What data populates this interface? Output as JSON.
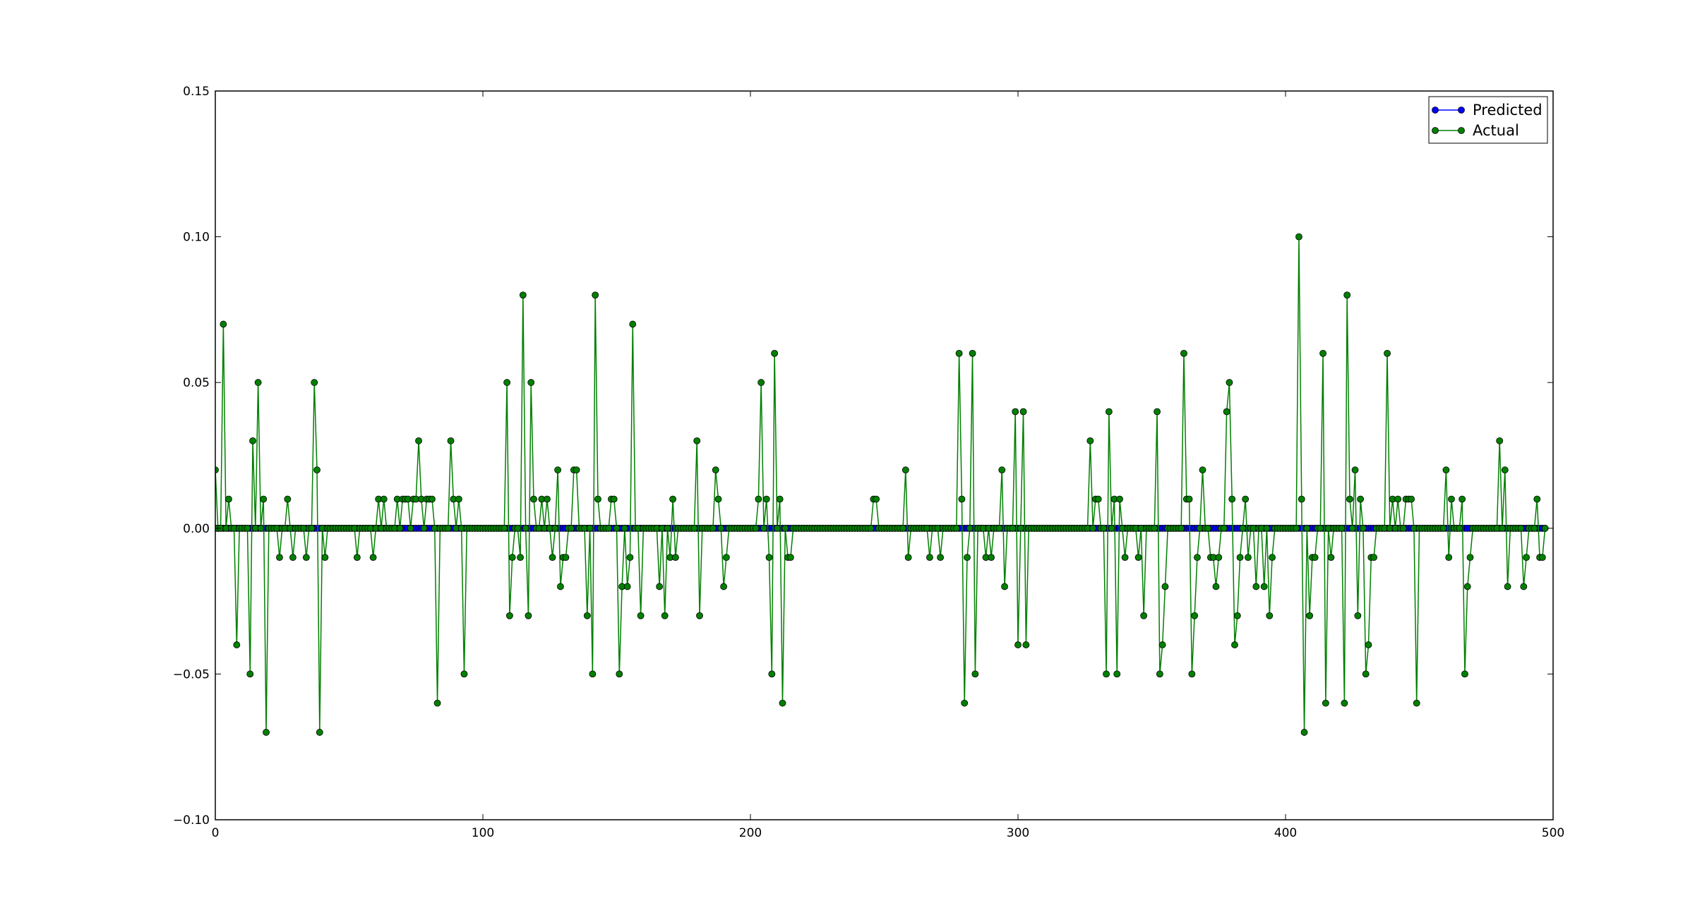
{
  "chart_data": {
    "type": "line",
    "title": "",
    "xlabel": "",
    "ylabel": "",
    "xlim": [
      0,
      500
    ],
    "ylim": [
      -0.1,
      0.15
    ],
    "xticks": [
      0,
      100,
      200,
      300,
      400,
      500
    ],
    "yticks": [
      -0.1,
      -0.05,
      0.0,
      0.05,
      0.1,
      0.15
    ],
    "xtick_labels": [
      "0",
      "100",
      "200",
      "300",
      "400",
      "500"
    ],
    "ytick_labels": [
      "−0.10",
      "−0.05",
      "0.00",
      "0.05",
      "0.10",
      "0.15"
    ],
    "grid": false,
    "legend_position": "top-right",
    "n_points": 498,
    "series": [
      {
        "name": "Predicted",
        "color": "#0000ff",
        "constant_value": 0.0
      },
      {
        "name": "Actual",
        "color": "#008000",
        "default_value": 0.0,
        "nonzero_points": [
          [
            0,
            0.02
          ],
          [
            3,
            0.07
          ],
          [
            5,
            0.01
          ],
          [
            8,
            -0.04
          ],
          [
            13,
            -0.05
          ],
          [
            14,
            0.03
          ],
          [
            16,
            0.05
          ],
          [
            18,
            0.01
          ],
          [
            19,
            -0.07
          ],
          [
            24,
            -0.01
          ],
          [
            27,
            0.01
          ],
          [
            29,
            -0.01
          ],
          [
            34,
            -0.01
          ],
          [
            37,
            0.05
          ],
          [
            38,
            0.02
          ],
          [
            39,
            -0.07
          ],
          [
            41,
            -0.01
          ],
          [
            53,
            -0.01
          ],
          [
            59,
            -0.01
          ],
          [
            61,
            0.01
          ],
          [
            63,
            0.01
          ],
          [
            68,
            0.01
          ],
          [
            70,
            0.01
          ],
          [
            71,
            0.01
          ],
          [
            72,
            0.01
          ],
          [
            74,
            0.01
          ],
          [
            75,
            0.01
          ],
          [
            76,
            0.03
          ],
          [
            77,
            0.01
          ],
          [
            79,
            0.01
          ],
          [
            80,
            0.01
          ],
          [
            81,
            0.01
          ],
          [
            83,
            -0.06
          ],
          [
            88,
            0.03
          ],
          [
            89,
            0.01
          ],
          [
            91,
            0.01
          ],
          [
            93,
            -0.05
          ],
          [
            109,
            0.05
          ],
          [
            110,
            -0.03
          ],
          [
            111,
            -0.01
          ],
          [
            114,
            -0.01
          ],
          [
            115,
            0.08
          ],
          [
            117,
            -0.03
          ],
          [
            118,
            0.05
          ],
          [
            119,
            0.01
          ],
          [
            122,
            0.01
          ],
          [
            124,
            0.01
          ],
          [
            126,
            -0.01
          ],
          [
            128,
            0.02
          ],
          [
            129,
            -0.02
          ],
          [
            130,
            -0.01
          ],
          [
            131,
            -0.01
          ],
          [
            134,
            0.02
          ],
          [
            135,
            0.02
          ],
          [
            139,
            -0.03
          ],
          [
            141,
            -0.05
          ],
          [
            142,
            0.08
          ],
          [
            143,
            0.01
          ],
          [
            148,
            0.01
          ],
          [
            149,
            0.01
          ],
          [
            151,
            -0.05
          ],
          [
            152,
            -0.02
          ],
          [
            154,
            -0.02
          ],
          [
            155,
            -0.01
          ],
          [
            156,
            0.07
          ],
          [
            159,
            -0.03
          ],
          [
            166,
            -0.02
          ],
          [
            168,
            -0.03
          ],
          [
            170,
            -0.01
          ],
          [
            171,
            0.01
          ],
          [
            172,
            -0.01
          ],
          [
            180,
            0.03
          ],
          [
            181,
            -0.03
          ],
          [
            187,
            0.02
          ],
          [
            188,
            0.01
          ],
          [
            190,
            -0.02
          ],
          [
            191,
            -0.01
          ],
          [
            203,
            0.01
          ],
          [
            204,
            0.05
          ],
          [
            206,
            0.01
          ],
          [
            207,
            -0.01
          ],
          [
            208,
            -0.05
          ],
          [
            209,
            0.06
          ],
          [
            211,
            0.01
          ],
          [
            212,
            -0.06
          ],
          [
            214,
            -0.01
          ],
          [
            215,
            -0.01
          ],
          [
            246,
            0.01
          ],
          [
            247,
            0.01
          ],
          [
            258,
            0.02
          ],
          [
            259,
            -0.01
          ],
          [
            267,
            -0.01
          ],
          [
            271,
            -0.01
          ],
          [
            278,
            0.06
          ],
          [
            279,
            0.01
          ],
          [
            280,
            -0.06
          ],
          [
            281,
            -0.01
          ],
          [
            283,
            0.06
          ],
          [
            284,
            -0.05
          ],
          [
            288,
            -0.01
          ],
          [
            290,
            -0.01
          ],
          [
            294,
            0.02
          ],
          [
            295,
            -0.02
          ],
          [
            299,
            0.04
          ],
          [
            300,
            -0.04
          ],
          [
            302,
            0.04
          ],
          [
            303,
            -0.04
          ],
          [
            327,
            0.03
          ],
          [
            329,
            0.01
          ],
          [
            330,
            0.01
          ],
          [
            333,
            -0.05
          ],
          [
            334,
            0.04
          ],
          [
            336,
            0.01
          ],
          [
            337,
            -0.05
          ],
          [
            338,
            0.01
          ],
          [
            340,
            -0.01
          ],
          [
            345,
            -0.01
          ],
          [
            347,
            -0.03
          ],
          [
            352,
            0.04
          ],
          [
            353,
            -0.05
          ],
          [
            354,
            -0.04
          ],
          [
            355,
            -0.02
          ],
          [
            362,
            0.06
          ],
          [
            363,
            0.01
          ],
          [
            364,
            0.01
          ],
          [
            365,
            -0.05
          ],
          [
            366,
            -0.03
          ],
          [
            367,
            -0.01
          ],
          [
            369,
            0.02
          ],
          [
            372,
            -0.01
          ],
          [
            373,
            -0.01
          ],
          [
            374,
            -0.02
          ],
          [
            375,
            -0.01
          ],
          [
            378,
            0.04
          ],
          [
            379,
            0.05
          ],
          [
            380,
            0.01
          ],
          [
            381,
            -0.04
          ],
          [
            382,
            -0.03
          ],
          [
            383,
            -0.01
          ],
          [
            385,
            0.01
          ],
          [
            386,
            -0.01
          ],
          [
            389,
            -0.02
          ],
          [
            392,
            -0.02
          ],
          [
            394,
            -0.03
          ],
          [
            395,
            -0.01
          ],
          [
            405,
            0.1
          ],
          [
            406,
            0.01
          ],
          [
            407,
            -0.07
          ],
          [
            409,
            -0.03
          ],
          [
            410,
            -0.01
          ],
          [
            411,
            -0.01
          ],
          [
            414,
            0.06
          ],
          [
            415,
            -0.06
          ],
          [
            417,
            -0.01
          ],
          [
            422,
            -0.06
          ],
          [
            423,
            0.08
          ],
          [
            424,
            0.01
          ],
          [
            426,
            0.02
          ],
          [
            427,
            -0.03
          ],
          [
            428,
            0.01
          ],
          [
            430,
            -0.05
          ],
          [
            431,
            -0.04
          ],
          [
            432,
            -0.01
          ],
          [
            433,
            -0.01
          ],
          [
            438,
            0.06
          ],
          [
            440,
            0.01
          ],
          [
            442,
            0.01
          ],
          [
            445,
            0.01
          ],
          [
            446,
            0.01
          ],
          [
            447,
            0.01
          ],
          [
            449,
            -0.06
          ],
          [
            460,
            0.02
          ],
          [
            461,
            -0.01
          ],
          [
            462,
            0.01
          ],
          [
            466,
            0.01
          ],
          [
            467,
            -0.05
          ],
          [
            468,
            -0.02
          ],
          [
            469,
            -0.01
          ],
          [
            480,
            0.03
          ],
          [
            482,
            0.02
          ],
          [
            483,
            -0.02
          ],
          [
            489,
            -0.02
          ],
          [
            490,
            -0.01
          ],
          [
            494,
            0.01
          ],
          [
            495,
            -0.01
          ],
          [
            496,
            -0.01
          ]
        ]
      }
    ]
  }
}
